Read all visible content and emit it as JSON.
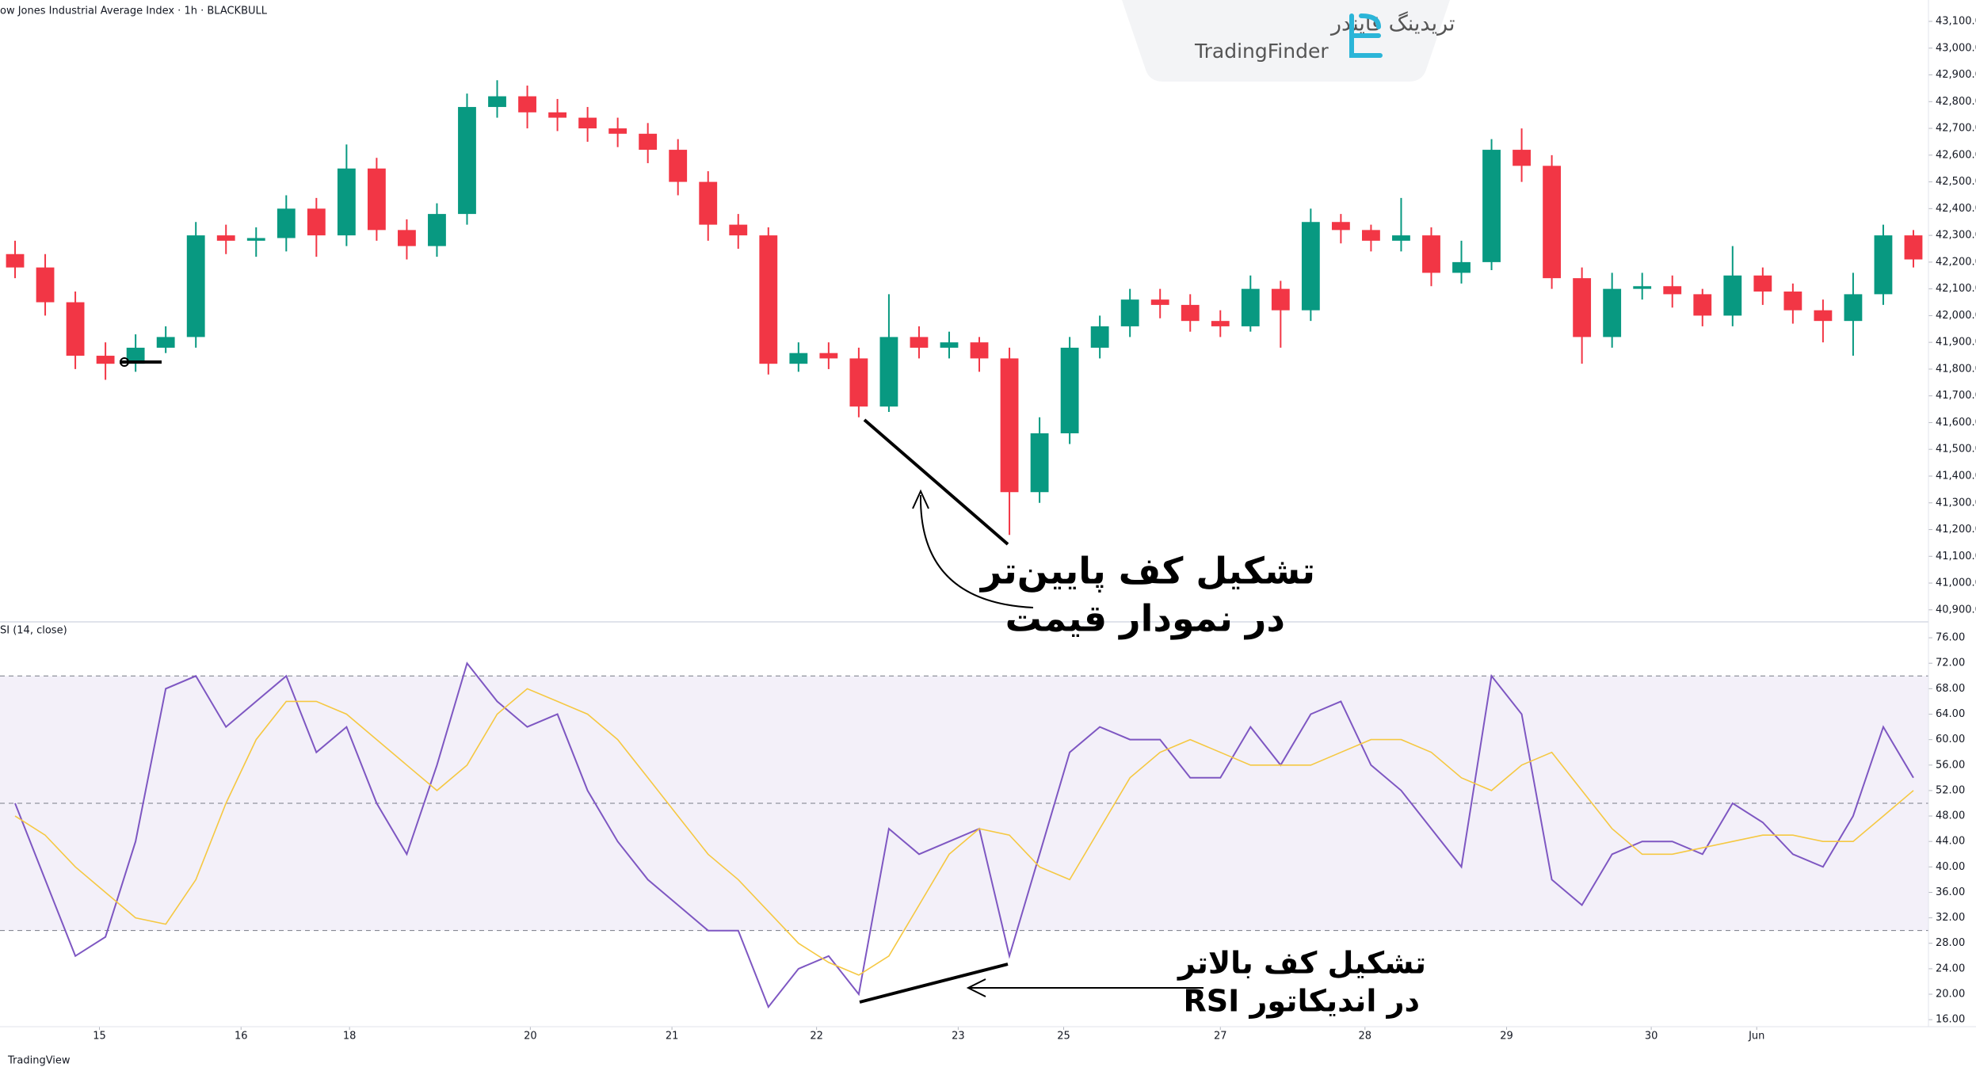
{
  "header": {
    "logo_fa": "تریدینگ فایندر",
    "logo_en": "TradingFinder",
    "footer": "TradingView"
  },
  "chart_data": [
    {
      "type": "candlestick",
      "title": "ow Jones Industrial Average Index · 1h · BLACKBULL",
      "x": [
        0,
        1,
        2,
        3,
        4,
        5,
        6,
        7,
        8,
        9,
        10,
        11,
        12,
        13,
        14,
        15,
        16,
        17,
        18,
        19,
        20,
        21,
        22,
        23,
        24,
        25,
        26,
        27,
        28,
        29,
        30,
        31,
        32,
        33,
        34,
        35,
        36,
        37,
        38,
        39,
        40,
        41,
        42,
        43,
        44,
        45,
        46,
        47,
        48,
        49,
        50,
        51,
        52,
        53,
        54,
        55,
        56,
        57,
        58,
        59,
        60,
        61,
        62,
        63
      ],
      "open": [
        42230,
        42180,
        42050,
        41850,
        41820,
        41880,
        41920,
        42300,
        42280,
        42290,
        42400,
        42300,
        42550,
        42320,
        42260,
        42380,
        42780,
        42820,
        42760,
        42740,
        42700,
        42680,
        42620,
        42500,
        42340,
        42300,
        41820,
        41860,
        41840,
        41660,
        41920,
        41880,
        41900,
        41840,
        41340,
        41560,
        41880,
        41960,
        42060,
        42040,
        41980,
        41960,
        42100,
        42020,
        42350,
        42320,
        42280,
        42300,
        42160,
        42200,
        42620,
        42560,
        42140,
        41920,
        42100,
        42110,
        42080,
        42000,
        42150,
        42090,
        42020,
        41980,
        42080,
        42300
      ],
      "high": [
        42280,
        42230,
        42090,
        41900,
        41930,
        41960,
        42350,
        42340,
        42330,
        42450,
        42440,
        42640,
        42590,
        42360,
        42420,
        42830,
        42880,
        42860,
        42810,
        42780,
        42740,
        42720,
        42660,
        42540,
        42380,
        42330,
        41900,
        41900,
        41880,
        42080,
        41960,
        41940,
        41920,
        41880,
        41620,
        41920,
        42000,
        42100,
        42100,
        42080,
        42020,
        42150,
        42130,
        42400,
        42380,
        42340,
        42440,
        42330,
        42280,
        42660,
        42700,
        42600,
        42180,
        42160,
        42160,
        42150,
        42100,
        42260,
        42180,
        42120,
        42060,
        42160,
        42340,
        42320
      ],
      "low": [
        42140,
        42000,
        41800,
        41760,
        41790,
        41860,
        41880,
        42230,
        42220,
        42240,
        42220,
        42260,
        42280,
        42210,
        42220,
        42340,
        42740,
        42700,
        42690,
        42650,
        42630,
        42570,
        42450,
        42280,
        42250,
        41780,
        41790,
        41800,
        41620,
        41640,
        41840,
        41840,
        41790,
        41180,
        41300,
        41520,
        41840,
        41920,
        41990,
        41940,
        41920,
        41940,
        41880,
        41980,
        42270,
        42240,
        42240,
        42110,
        42120,
        42170,
        42500,
        42100,
        41820,
        41880,
        42060,
        42030,
        41960,
        41960,
        42040,
        41970,
        41900,
        41850,
        42040,
        42180
      ],
      "close": [
        42180,
        42050,
        41850,
        41820,
        41880,
        41920,
        42300,
        42280,
        42290,
        42400,
        42300,
        42550,
        42320,
        42260,
        42380,
        42780,
        42820,
        42760,
        42740,
        42700,
        42680,
        42620,
        42500,
        42340,
        42300,
        41820,
        41860,
        41840,
        41660,
        41920,
        41880,
        41900,
        41840,
        41340,
        41560,
        41880,
        41960,
        42060,
        42040,
        41980,
        41960,
        42100,
        42020,
        42350,
        42320,
        42280,
        42300,
        42160,
        42200,
        42620,
        42560,
        42140,
        41920,
        42100,
        42110,
        42080,
        42000,
        42150,
        42090,
        42020,
        41980,
        42080,
        42300,
        42210
      ],
      "up_color": "#089981",
      "down_color": "#f23645",
      "xlim": [
        -0.5,
        63.5
      ],
      "ylim": [
        40855,
        43180
      ],
      "yticks": [
        {
          "value": 40900,
          "label": "40,900.00"
        },
        {
          "value": 41000,
          "label": "41,000.00"
        },
        {
          "value": 41100,
          "label": "41,100.00"
        },
        {
          "value": 41200,
          "label": "41,200.00"
        },
        {
          "value": 41300,
          "label": "41,300.00"
        },
        {
          "value": 41400,
          "label": "41,400.00"
        },
        {
          "value": 41500,
          "label": "41,500.00"
        },
        {
          "value": 41600,
          "label": "41,600.00"
        },
        {
          "value": 41700,
          "label": "41,700.00"
        },
        {
          "value": 41800,
          "label": "41,800.00"
        },
        {
          "value": 41900,
          "label": "41,900.00"
        },
        {
          "value": 42000,
          "label": "42,000.00"
        },
        {
          "value": 42100,
          "label": "42,100.00"
        },
        {
          "value": 42200,
          "label": "42,200.00"
        },
        {
          "value": 42300,
          "label": "42,300.00"
        },
        {
          "value": 42400,
          "label": "42,400.00"
        },
        {
          "value": 42500,
          "label": "42,500.00"
        },
        {
          "value": 42600,
          "label": "42,600.00"
        },
        {
          "value": 42700,
          "label": "42,700.00"
        },
        {
          "value": 42800,
          "label": "42,800.00"
        },
        {
          "value": 42900,
          "label": "42,900.00"
        },
        {
          "value": 43000,
          "label": "43,000.00"
        },
        {
          "value": 43100,
          "label": "43,100.00"
        }
      ],
      "annotations": [
        "تشکیل کف پایین‌تر",
        "در نمودار قیمت"
      ]
    },
    {
      "type": "line",
      "title": "SI (14, close)",
      "x": [
        0,
        1,
        2,
        3,
        4,
        5,
        6,
        7,
        8,
        9,
        10,
        11,
        12,
        13,
        14,
        15,
        16,
        17,
        18,
        19,
        20,
        21,
        22,
        23,
        24,
        25,
        26,
        27,
        28,
        29,
        30,
        31,
        32,
        33,
        34,
        35,
        36,
        37,
        38,
        39,
        40,
        41,
        42,
        43,
        44,
        45,
        46,
        47,
        48,
        49,
        50,
        51,
        52,
        53,
        54,
        55,
        56,
        57,
        58,
        59,
        60,
        61,
        62,
        63
      ],
      "series": [
        {
          "name": "RSI",
          "color": "#7e57c2",
          "values": [
            50,
            38,
            26,
            29,
            44,
            68,
            70,
            62,
            66,
            70,
            58,
            62,
            50,
            42,
            56,
            72,
            66,
            62,
            64,
            52,
            44,
            38,
            34,
            30,
            30,
            18,
            24,
            26,
            20,
            46,
            42,
            44,
            46,
            26,
            42,
            58,
            62,
            60,
            60,
            54,
            54,
            62,
            56,
            64,
            66,
            56,
            52,
            46,
            40,
            70,
            64,
            38,
            34,
            42,
            44,
            44,
            42,
            50,
            47,
            42,
            40,
            48,
            62,
            54
          ]
        },
        {
          "name": "RSI MA",
          "color": "#f5c842",
          "values": [
            48,
            45,
            40,
            36,
            32,
            31,
            38,
            50,
            60,
            66,
            66,
            64,
            60,
            56,
            52,
            56,
            64,
            68,
            66,
            64,
            60,
            54,
            48,
            42,
            38,
            33,
            28,
            25,
            23,
            26,
            34,
            42,
            46,
            45,
            40,
            38,
            46,
            54,
            58,
            60,
            58,
            56,
            56,
            56,
            58,
            60,
            60,
            58,
            54,
            52,
            56,
            58,
            52,
            46,
            42,
            42,
            43,
            44,
            45,
            45,
            44,
            44,
            48,
            52
          ]
        }
      ],
      "bands": {
        "upper": 70,
        "middle": 50,
        "lower": 30,
        "color": "#7e57c2"
      },
      "xlim": [
        -0.5,
        63.5
      ],
      "ylim": [
        14.9,
        78.5
      ],
      "yticks": [
        {
          "value": 16,
          "label": "16.00"
        },
        {
          "value": 20,
          "label": "20.00"
        },
        {
          "value": 24,
          "label": "24.00"
        },
        {
          "value": 28,
          "label": "28.00"
        },
        {
          "value": 32,
          "label": "32.00"
        },
        {
          "value": 36,
          "label": "36.00"
        },
        {
          "value": 40,
          "label": "40.00"
        },
        {
          "value": 44,
          "label": "44.00"
        },
        {
          "value": 48,
          "label": "48.00"
        },
        {
          "value": 52,
          "label": "52.00"
        },
        {
          "value": 56,
          "label": "56.00"
        },
        {
          "value": 60,
          "label": "60.00"
        },
        {
          "value": 64,
          "label": "64.00"
        },
        {
          "value": 68,
          "label": "68.00"
        },
        {
          "value": 72,
          "label": "72.00"
        },
        {
          "value": 76,
          "label": "76.00"
        }
      ],
      "xticks": [
        {
          "value": 2.8,
          "label": "15"
        },
        {
          "value": 7.5,
          "label": "16"
        },
        {
          "value": 11.1,
          "label": "18"
        },
        {
          "value": 17.1,
          "label": "20"
        },
        {
          "value": 21.8,
          "label": "21"
        },
        {
          "value": 26.6,
          "label": "22"
        },
        {
          "value": 31.3,
          "label": "23"
        },
        {
          "value": 34.8,
          "label": "25"
        },
        {
          "value": 40,
          "label": "27"
        },
        {
          "value": 44.8,
          "label": "28"
        },
        {
          "value": 49.5,
          "label": "29"
        },
        {
          "value": 54.3,
          "label": "30"
        },
        {
          "value": 57.8,
          "label": "Jun"
        }
      ],
      "annotations": [
        "تشکیل کف بالاتر",
        "در اندیکاتور RSI"
      ]
    }
  ]
}
